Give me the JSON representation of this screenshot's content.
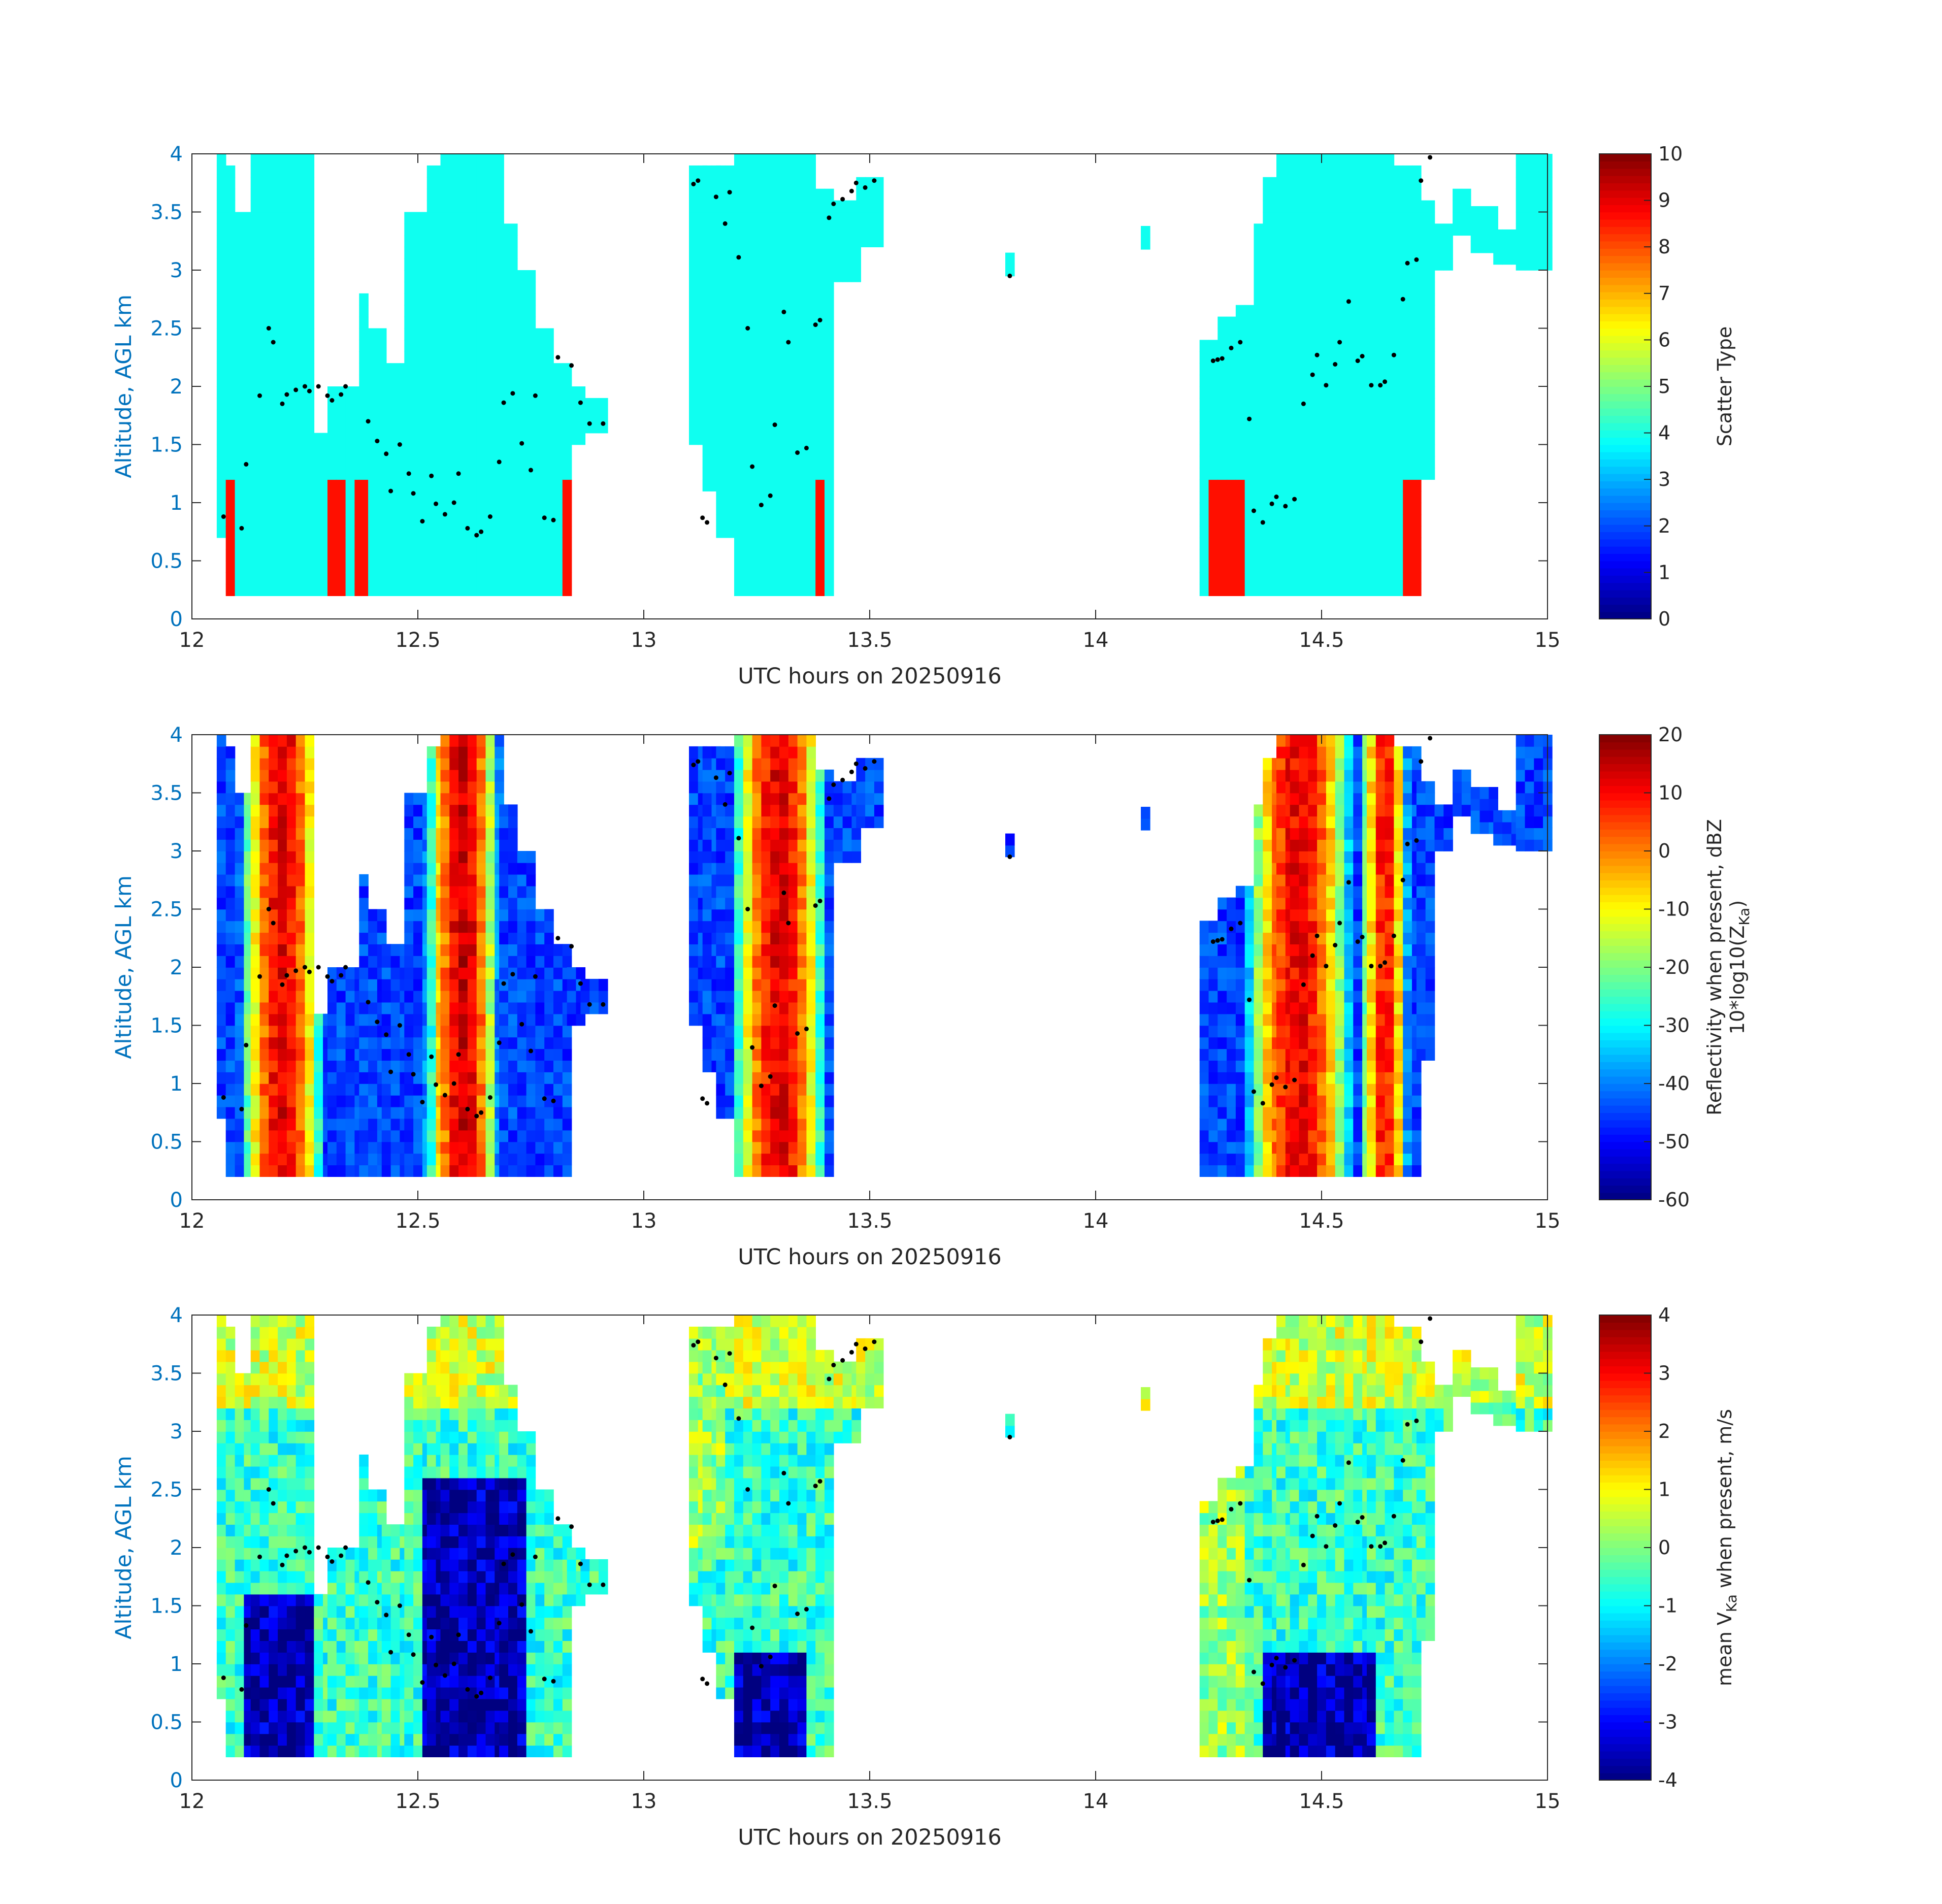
{
  "chart_data": [
    {
      "type": "heatmap",
      "xlabel": "UTC hours on 20250916",
      "ylabel": "Altitude, AGL km",
      "xlim": [
        12,
        15
      ],
      "ylim": [
        0,
        4
      ],
      "xticks": [
        "12",
        "12.5",
        "13",
        "13.5",
        "14",
        "14.5",
        "15"
      ],
      "yticks": [
        "0",
        "0.5",
        "1",
        "1.5",
        "2",
        "2.5",
        "3",
        "3.5",
        "4"
      ],
      "colorbar": {
        "label": "Scatter Type",
        "range": [
          0,
          10
        ],
        "ticks": [
          "0",
          "1",
          "2",
          "3",
          "4",
          "5",
          "6",
          "7",
          "8",
          "9",
          "10"
        ],
        "colormap": "jet"
      },
      "dominant_value": 3.9,
      "secondary_value": 8.6
    },
    {
      "type": "heatmap",
      "xlabel": "UTC hours on 20250916",
      "ylabel": "Altitude, AGL km",
      "xlim": [
        12,
        15
      ],
      "ylim": [
        0,
        4
      ],
      "xticks": [
        "12",
        "12.5",
        "13",
        "13.5",
        "14",
        "14.5",
        "15"
      ],
      "yticks": [
        "0",
        "0.5",
        "1",
        "1.5",
        "2",
        "2.5",
        "3",
        "3.5",
        "4"
      ],
      "colorbar": {
        "label": "Reflectivity when present, dBZ",
        "label2": "10*log10(Z",
        "label2_sub": "Ka",
        "label2_end": ")",
        "range": [
          -60,
          20
        ],
        "ticks": [
          "-60",
          "-50",
          "-40",
          "-30",
          "-20",
          "-10",
          "0",
          "10",
          "20"
        ],
        "colormap": "jet"
      }
    },
    {
      "type": "heatmap",
      "xlabel": "UTC hours on 20250916",
      "ylabel": "Altitude, AGL km",
      "xlim": [
        12,
        15
      ],
      "ylim": [
        0,
        4
      ],
      "xticks": [
        "12",
        "12.5",
        "13",
        "13.5",
        "14",
        "14.5",
        "15"
      ],
      "yticks": [
        "0",
        "0.5",
        "1",
        "1.5",
        "2",
        "2.5",
        "3",
        "3.5",
        "4"
      ],
      "colorbar": {
        "label": "mean V",
        "label_sub": "Ka",
        "label_end": " when present, m/s",
        "range": [
          -4,
          4
        ],
        "ticks": [
          "-4",
          "-3",
          "-2",
          "-1",
          "0",
          "1",
          "2",
          "3",
          "4"
        ],
        "colormap": "jet"
      }
    }
  ],
  "overlay_points": {
    "marker": "black dot",
    "x": [
      12.07,
      12.11,
      12.12,
      12.15,
      12.17,
      12.18,
      12.2,
      12.21,
      12.23,
      12.25,
      12.26,
      12.28,
      12.3,
      12.31,
      12.33,
      12.34,
      12.39,
      12.41,
      12.43,
      12.44,
      12.46,
      12.48,
      12.49,
      12.51,
      12.53,
      12.54,
      12.56,
      12.58,
      12.59,
      12.61,
      12.63,
      12.64,
      12.66,
      12.68,
      12.69,
      12.71,
      12.73,
      12.75,
      12.76,
      12.78,
      12.8,
      12.81,
      12.84,
      12.86,
      12.88,
      12.91,
      13.11,
      13.12,
      13.13,
      13.14,
      13.16,
      13.18,
      13.19,
      13.21,
      13.23,
      13.24,
      13.26,
      13.28,
      13.29,
      13.31,
      13.32,
      13.34,
      13.36,
      13.38,
      13.39,
      13.41,
      13.42,
      13.44,
      13.46,
      13.47,
      13.49,
      13.51,
      13.81,
      14.26,
      14.27,
      14.28,
      14.3,
      14.32,
      14.34,
      14.35,
      14.37,
      14.39,
      14.4,
      14.42,
      14.44,
      14.46,
      14.48,
      14.49,
      14.51,
      14.53,
      14.54,
      14.56,
      14.58,
      14.59,
      14.61,
      14.63,
      14.64,
      14.66,
      14.68,
      14.69,
      14.71,
      14.72,
      14.74
    ],
    "y": [
      0.88,
      0.78,
      1.33,
      1.92,
      2.5,
      2.38,
      1.85,
      1.93,
      1.97,
      2.0,
      1.96,
      2.0,
      1.92,
      1.88,
      1.93,
      2.0,
      1.7,
      1.53,
      1.42,
      1.1,
      1.5,
      1.25,
      1.08,
      0.84,
      1.23,
      0.99,
      0.9,
      1.0,
      1.25,
      0.78,
      0.72,
      0.75,
      0.88,
      1.35,
      1.86,
      1.94,
      1.51,
      1.28,
      1.92,
      0.87,
      0.85,
      2.25,
      2.18,
      1.86,
      1.68,
      1.68,
      3.74,
      3.77,
      0.87,
      0.83,
      3.63,
      3.4,
      3.67,
      3.11,
      2.5,
      1.31,
      0.98,
      1.06,
      1.67,
      2.64,
      2.38,
      1.43,
      1.47,
      2.53,
      2.57,
      3.45,
      3.57,
      3.61,
      3.68,
      3.75,
      3.71,
      3.77,
      2.95,
      2.22,
      2.23,
      2.24,
      2.33,
      2.38,
      1.72,
      0.93,
      0.83,
      0.99,
      1.05,
      0.97,
      1.03,
      1.85,
      2.1,
      2.27,
      2.01,
      2.19,
      2.38,
      2.73,
      2.22,
      2.26,
      2.01,
      2.01,
      2.04,
      2.27,
      2.75,
      3.06,
      3.09,
      3.77,
      3.97
    ]
  }
}
